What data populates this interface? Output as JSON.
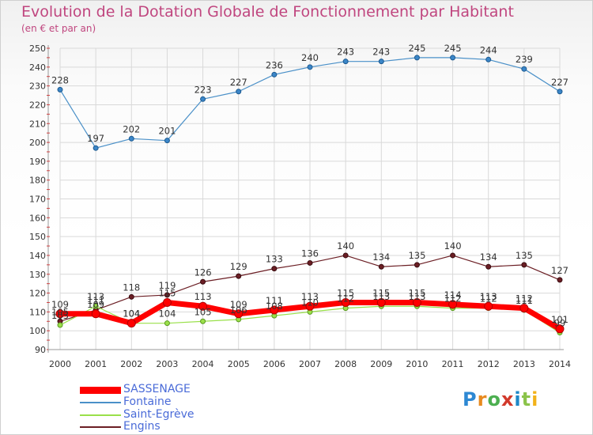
{
  "title": "Evolution de la Dotation Globale de Fonctionnement par Habitant",
  "subtitle": "(en € et par an)",
  "logo_text": "Proxiti",
  "chart_data": {
    "type": "line",
    "title": "Evolution de la Dotation Globale de Fonctionnement par Habitant",
    "subtitle": "(en € et par an)",
    "x": [
      "2000",
      "2001",
      "2002",
      "2003",
      "2004",
      "2005",
      "2006",
      "2007",
      "2008",
      "2009",
      "2010",
      "2011",
      "2012",
      "2013",
      "2014"
    ],
    "ylim": [
      90,
      250
    ],
    "yticks": [
      90,
      100,
      110,
      120,
      130,
      140,
      150,
      160,
      170,
      180,
      190,
      200,
      210,
      220,
      230,
      240,
      250
    ],
    "grid": true,
    "legend_position": "bottom-left",
    "series": [
      {
        "name": "SASSENAGE",
        "color": "#ff0000",
        "values": [
          109,
          109,
          104,
          115,
          113,
          109,
          111,
          113,
          115,
          115,
          115,
          114,
          113,
          112,
          101
        ]
      },
      {
        "name": "Fontaine",
        "color": "#4a90c8",
        "values": [
          228,
          197,
          202,
          201,
          223,
          227,
          236,
          240,
          243,
          243,
          245,
          245,
          244,
          239,
          227
        ]
      },
      {
        "name": "Saint-Egrève",
        "color": "#99e04a",
        "values": [
          103,
          113,
          104,
          104,
          105,
          106,
          108,
          110,
          112,
          113,
          113,
          112,
          112,
          111,
          99
        ]
      },
      {
        "name": "Engins",
        "color": "#6b1e24",
        "values": [
          105,
          111,
          118,
          119,
          126,
          129,
          133,
          136,
          140,
          134,
          135,
          140,
          134,
          135,
          127
        ]
      }
    ]
  }
}
